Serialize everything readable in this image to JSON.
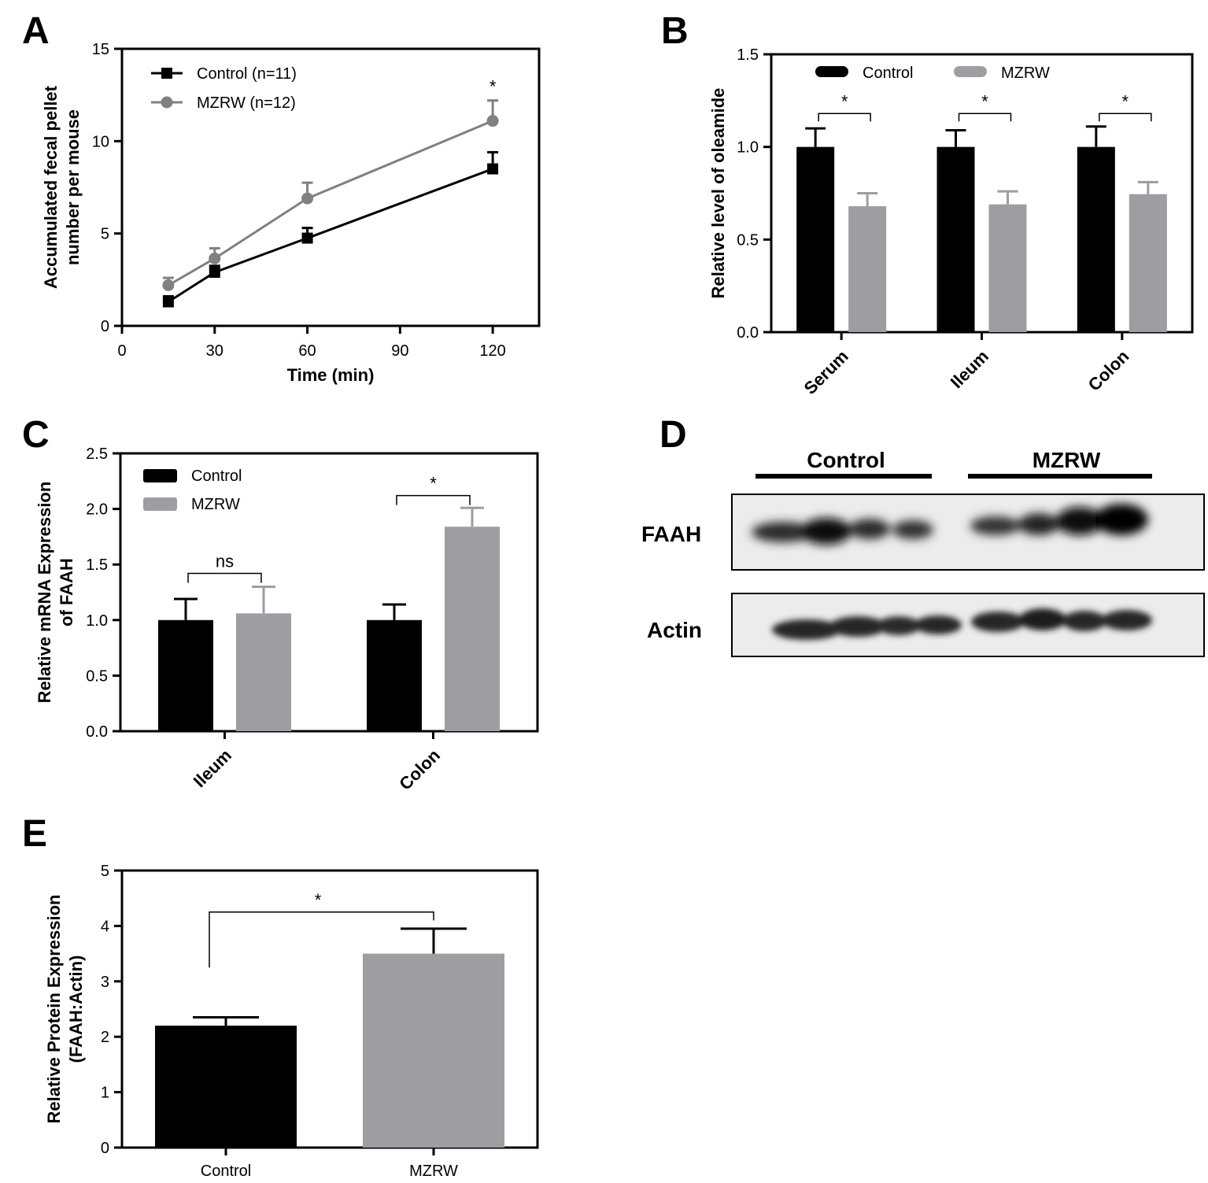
{
  "colors": {
    "control": "#000000",
    "mzrw_line": "#808080",
    "mzrw_bar": "#9e9ea2"
  },
  "chart_data": [
    {
      "panel": "A",
      "type": "line",
      "xlabel": "Time (min)",
      "ylabel": [
        "Accumulated fecal pellet",
        "number per mouse"
      ],
      "xlim": [
        0,
        135
      ],
      "ylim": [
        0,
        15
      ],
      "xticks": [
        "0",
        "30",
        "60",
        "90",
        "120"
      ],
      "yticks": [
        "0",
        "5",
        "10",
        "15"
      ],
      "legend_position": "top-left",
      "series": [
        {
          "name": "Control (n=11)",
          "marker": "square",
          "x": [
            15,
            30,
            60,
            120
          ],
          "y": [
            1.3,
            2.9,
            4.75,
            8.5
          ],
          "err": [
            0.3,
            0.35,
            0.55,
            0.9
          ]
        },
        {
          "name": "MZRW (n=12)",
          "marker": "circle",
          "x": [
            15,
            30,
            60,
            120
          ],
          "y": [
            2.2,
            3.65,
            6.9,
            11.1
          ],
          "err": [
            0.4,
            0.55,
            0.85,
            1.1
          ]
        }
      ],
      "annotations": [
        {
          "text": "*",
          "x": 120
        }
      ]
    },
    {
      "panel": "B",
      "type": "bar",
      "ylabel": "Relative level of oleamide",
      "ylim": [
        0,
        1.5
      ],
      "yticks": [
        "0.0",
        "0.5",
        "1.0",
        "1.5"
      ],
      "categories": [
        "Serum",
        "Ileum",
        "Colon"
      ],
      "legend_position": "top",
      "series": [
        {
          "name": "Control",
          "values": [
            1.0,
            1.0,
            1.0
          ],
          "err": [
            0.1,
            0.09,
            0.11
          ]
        },
        {
          "name": "MZRW",
          "values": [
            0.68,
            0.69,
            0.745
          ],
          "err": [
            0.07,
            0.07,
            0.065
          ]
        }
      ],
      "brackets": [
        {
          "cat": 0,
          "text": "*",
          "y": 1.18
        },
        {
          "cat": 1,
          "text": "*",
          "y": 1.18
        },
        {
          "cat": 2,
          "text": "*",
          "y": 1.18
        }
      ]
    },
    {
      "panel": "C",
      "type": "bar",
      "ylabel": [
        "Relative mRNA Expression",
        "of FAAH"
      ],
      "ylim": [
        0,
        2.5
      ],
      "yticks": [
        "0.0",
        "0.5",
        "1.0",
        "1.5",
        "2.0",
        "2.5"
      ],
      "categories": [
        "Ileum",
        "Colon"
      ],
      "legend_position": "top-left",
      "series": [
        {
          "name": "Control",
          "values": [
            1.0,
            1.0
          ],
          "err": [
            0.19,
            0.14
          ]
        },
        {
          "name": "MZRW",
          "values": [
            1.06,
            1.84
          ],
          "err": [
            0.24,
            0.17
          ]
        }
      ],
      "brackets": [
        {
          "cat": 0,
          "text": "ns",
          "y": 1.42
        },
        {
          "cat": 1,
          "text": "*",
          "y": 2.12
        }
      ]
    },
    {
      "panel": "E",
      "type": "bar",
      "ylabel": [
        "Relative Protein Expression",
        "(FAAH:Actin)"
      ],
      "ylim": [
        0,
        5
      ],
      "yticks": [
        "0",
        "1",
        "2",
        "3",
        "4",
        "5"
      ],
      "categories": [
        "Control",
        "MZRW"
      ],
      "values": [
        2.2,
        3.5
      ],
      "err": [
        0.15,
        0.45
      ],
      "brackets": [
        {
          "cat": "between",
          "text": "*",
          "y": 4.25
        }
      ]
    }
  ],
  "blot": {
    "panel": "D",
    "groups": [
      "Control",
      "MZRW"
    ],
    "rows": [
      "FAAH",
      "Actin"
    ]
  }
}
